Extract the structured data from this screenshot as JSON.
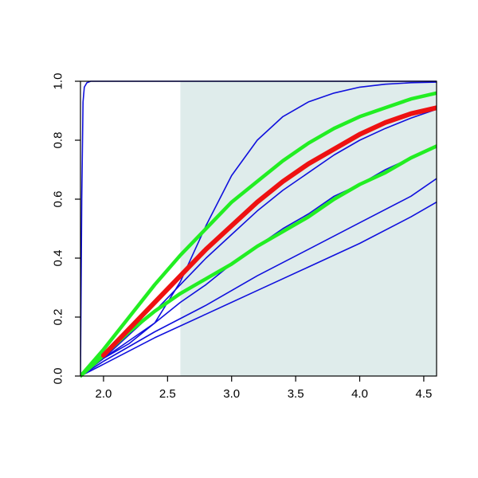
{
  "chart_data": {
    "type": "line",
    "title": "",
    "xlabel": "",
    "ylabel": "",
    "xlim": [
      1.82,
      4.6
    ],
    "ylim": [
      0.0,
      1.0
    ],
    "grid": false,
    "legend": "none",
    "x_ticks": [
      2.0,
      2.5,
      3.0,
      3.5,
      4.0,
      4.5
    ],
    "x_tick_labels": [
      "2.0",
      "2.5",
      "3.0",
      "3.5",
      "4.0",
      "4.5"
    ],
    "y_ticks": [
      0.0,
      0.2,
      0.4,
      0.6,
      0.8,
      1.0
    ],
    "y_tick_labels": [
      "0.0",
      "0.2",
      "0.4",
      "0.6",
      "0.8",
      "1.0"
    ],
    "shaded_region": {
      "x_from": 2.6,
      "x_to": 4.6,
      "color": "#dfeceb"
    },
    "colors": {
      "blue": "#1010dd",
      "green": "#22ee22",
      "red": "#ee1111",
      "frame": "#000000"
    },
    "series": [
      {
        "color": "#1010dd",
        "width": 1.6,
        "x": [
          1.82,
          1.83,
          1.84,
          1.85,
          1.87,
          1.9,
          2.0,
          3.0,
          4.6
        ],
        "y": [
          0.0,
          0.6,
          0.93,
          0.98,
          0.995,
          1.0,
          1.0,
          1.0,
          1.0
        ]
      },
      {
        "color": "#1010dd",
        "width": 1.6,
        "x": [
          1.82,
          2.0,
          2.2,
          2.4,
          2.6,
          2.8,
          3.0,
          3.2,
          3.4,
          3.6,
          3.8,
          4.0,
          4.2,
          4.4,
          4.6
        ],
        "y": [
          0.0,
          0.06,
          0.11,
          0.18,
          0.32,
          0.51,
          0.68,
          0.8,
          0.88,
          0.93,
          0.96,
          0.98,
          0.99,
          0.995,
          0.997
        ]
      },
      {
        "color": "#1010dd",
        "width": 1.6,
        "x": [
          1.82,
          2.0,
          2.2,
          2.4,
          2.6,
          2.8,
          3.0,
          3.2,
          3.4,
          3.6,
          3.8,
          4.0,
          4.2,
          4.4,
          4.6
        ],
        "y": [
          0.0,
          0.06,
          0.14,
          0.22,
          0.31,
          0.4,
          0.48,
          0.56,
          0.63,
          0.69,
          0.75,
          0.8,
          0.84,
          0.875,
          0.905
        ]
      },
      {
        "color": "#1010dd",
        "width": 1.6,
        "x": [
          1.82,
          2.0,
          2.2,
          2.4,
          2.6,
          2.8,
          3.0,
          3.2,
          3.4,
          3.6,
          3.8,
          4.0,
          4.2,
          4.4,
          4.6
        ],
        "y": [
          0.0,
          0.06,
          0.12,
          0.18,
          0.25,
          0.31,
          0.38,
          0.44,
          0.5,
          0.55,
          0.61,
          0.65,
          0.7,
          0.74,
          0.78
        ]
      },
      {
        "color": "#1010dd",
        "width": 1.6,
        "x": [
          1.82,
          2.0,
          2.4,
          2.8,
          3.2,
          3.6,
          4.0,
          4.4,
          4.6
        ],
        "y": [
          0.0,
          0.05,
          0.15,
          0.24,
          0.34,
          0.43,
          0.52,
          0.61,
          0.67
        ]
      },
      {
        "color": "#1010dd",
        "width": 1.6,
        "x": [
          1.82,
          2.0,
          2.4,
          2.8,
          3.2,
          3.6,
          4.0,
          4.4,
          4.6
        ],
        "y": [
          0.0,
          0.04,
          0.13,
          0.21,
          0.29,
          0.37,
          0.45,
          0.54,
          0.59
        ]
      },
      {
        "color": "#22ee22",
        "width": 4.5,
        "x": [
          1.82,
          2.0,
          2.2,
          2.4,
          2.6,
          2.8,
          3.0,
          3.2,
          3.4,
          3.6,
          3.8,
          4.0,
          4.2,
          4.4,
          4.6
        ],
        "y": [
          0.0,
          0.09,
          0.2,
          0.31,
          0.41,
          0.5,
          0.59,
          0.66,
          0.73,
          0.79,
          0.84,
          0.88,
          0.91,
          0.94,
          0.96
        ]
      },
      {
        "color": "#22ee22",
        "width": 4.5,
        "x": [
          1.82,
          2.0,
          2.2,
          2.4,
          2.6,
          2.8,
          3.0,
          3.2,
          3.4,
          3.6,
          3.8,
          4.0,
          4.2,
          4.4,
          4.6
        ],
        "y": [
          0.0,
          0.07,
          0.15,
          0.22,
          0.28,
          0.33,
          0.38,
          0.44,
          0.49,
          0.54,
          0.6,
          0.65,
          0.69,
          0.74,
          0.78
        ]
      },
      {
        "color": "#ee1111",
        "width": 6,
        "x": [
          2.0,
          2.2,
          2.4,
          2.6,
          2.8,
          3.0,
          3.2,
          3.4,
          3.6,
          3.8,
          4.0,
          4.2,
          4.4,
          4.6
        ],
        "y": [
          0.07,
          0.16,
          0.25,
          0.34,
          0.43,
          0.51,
          0.59,
          0.66,
          0.72,
          0.77,
          0.82,
          0.86,
          0.89,
          0.91
        ]
      }
    ]
  }
}
